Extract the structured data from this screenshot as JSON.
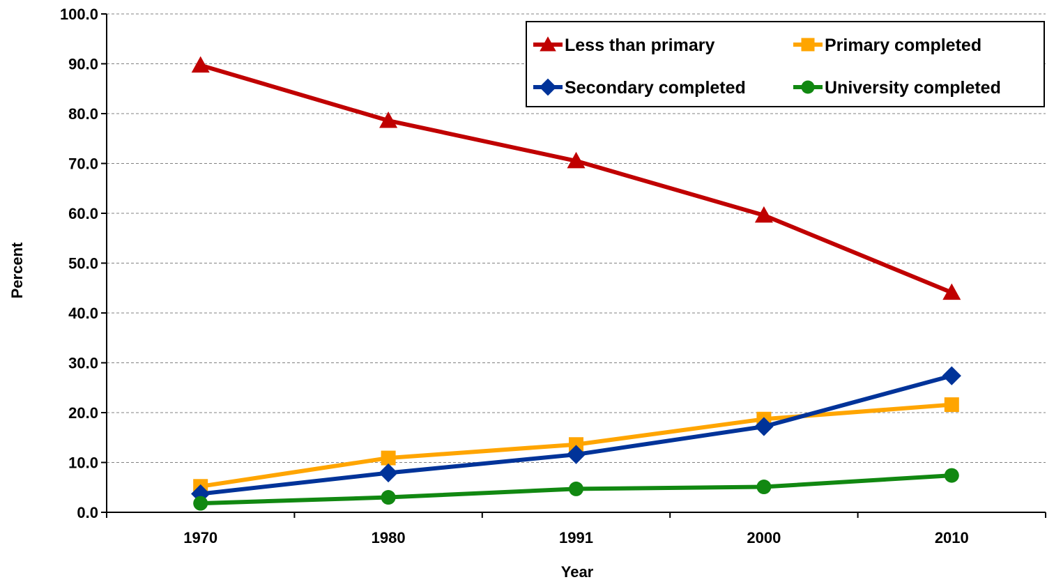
{
  "chart_data": {
    "type": "line",
    "title": "",
    "xlabel": "Year",
    "ylabel": "Percent",
    "categories": [
      "1970",
      "1980",
      "1991",
      "2000",
      "2010"
    ],
    "ylim": [
      0,
      100
    ],
    "ytick_labels": [
      "0.0",
      "10.0",
      "20.0",
      "30.0",
      "40.0",
      "50.0",
      "60.0",
      "70.0",
      "80.0",
      "90.0",
      "100.0"
    ],
    "grid": "horizontal dashed",
    "legend_position": "top-right",
    "series": [
      {
        "name": "Less than primary",
        "color": "#c00000",
        "marker": "triangle",
        "values": [
          89.7,
          78.6,
          70.5,
          59.6,
          44.1
        ]
      },
      {
        "name": "Primary completed",
        "color": "#ffa500",
        "marker": "square",
        "values": [
          5.2,
          10.9,
          13.6,
          18.7,
          21.6
        ]
      },
      {
        "name": "Secondary completed",
        "color": "#003399",
        "marker": "diamond",
        "values": [
          3.7,
          7.9,
          11.6,
          17.2,
          27.4
        ]
      },
      {
        "name": "University completed",
        "color": "#118811",
        "marker": "circle",
        "values": [
          1.8,
          3.0,
          4.7,
          5.1,
          7.4
        ]
      }
    ]
  }
}
